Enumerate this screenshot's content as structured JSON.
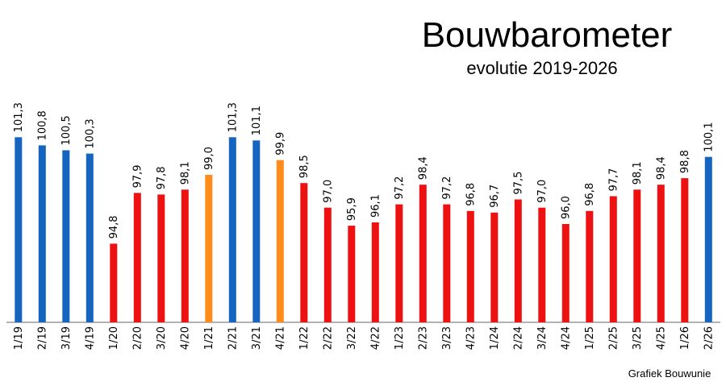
{
  "chart_data": {
    "type": "bar",
    "title": "Bouwbarometer",
    "subtitle": "evolutie 2019-2026",
    "source": "Grafiek Bouwunie",
    "ylim": [
      90,
      102
    ],
    "grid": false,
    "legend": "none",
    "colors": {
      "blue": "#1565c0",
      "red": "#ee1111",
      "orange": "#ff8c1a"
    },
    "categories": [
      "1/19",
      "2/19",
      "3/19",
      "4/19",
      "1/20",
      "2/20",
      "3/20",
      "4/20",
      "1/21",
      "2/21",
      "3/21",
      "4/21",
      "1/22",
      "2/22",
      "3/22",
      "4/22",
      "1/23",
      "2/23",
      "3/23",
      "4/23",
      "1/24",
      "2/24",
      "3/24",
      "4/24",
      "1/25",
      "2/25",
      "3/25",
      "4/25",
      "1/26",
      "2/26"
    ],
    "values": [
      101.3,
      100.8,
      100.5,
      100.3,
      94.8,
      97.9,
      97.8,
      98.1,
      99.0,
      101.3,
      101.1,
      99.9,
      98.5,
      97.0,
      95.9,
      96.1,
      97.2,
      98.4,
      97.2,
      96.8,
      96.7,
      97.5,
      97.0,
      96.0,
      96.8,
      97.7,
      98.1,
      98.4,
      98.8,
      100.1
    ],
    "labels": [
      "101,3",
      "100,8",
      "100,5",
      "100,3",
      "94,8",
      "97,9",
      "97,8",
      "98,1",
      "99,0",
      "101,3",
      "101,1",
      "99,9",
      "98,5",
      "97,0",
      "95,9",
      "96,1",
      "97,2",
      "98,4",
      "97,2",
      "96,8",
      "96,7",
      "97,5",
      "97,0",
      "96,0",
      "96,8",
      "97,7",
      "98,1",
      "98,4",
      "98,8",
      "100,1"
    ],
    "bar_colors": [
      "blue",
      "blue",
      "blue",
      "blue",
      "red",
      "red",
      "red",
      "red",
      "orange",
      "blue",
      "blue",
      "orange",
      "red",
      "red",
      "red",
      "red",
      "red",
      "red",
      "red",
      "red",
      "red",
      "red",
      "red",
      "red",
      "red",
      "red",
      "red",
      "red",
      "red",
      "blue"
    ]
  }
}
